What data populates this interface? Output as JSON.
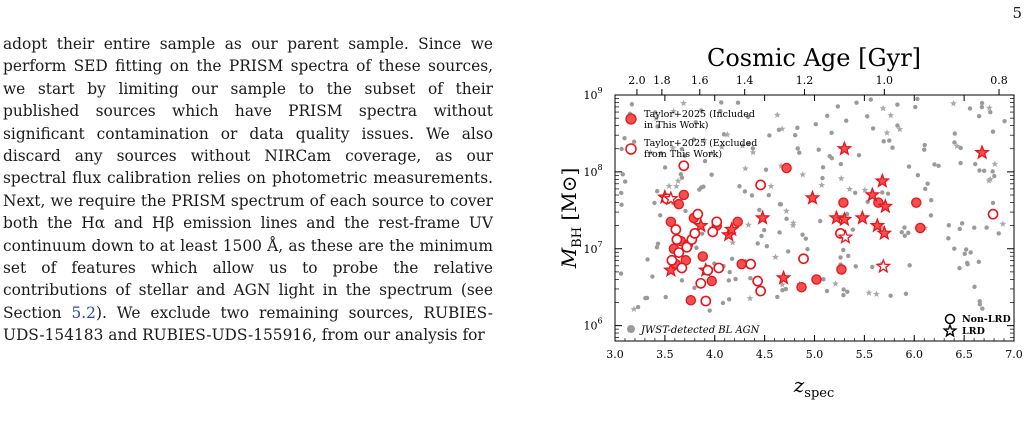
{
  "page_number": "5",
  "body_text": "adopt their entire sample as our parent sample. Since we perform SED fitting on the PRISM spectra of these sources, we start by limiting our sample to the subset of their published sources which have PRISM spectra without significant contamination or data quality issues. We also discard any sources without NIRCam coverage, as our spectral flux calibration relies on photometric measurements. Next, we require the PRISM spectrum of each source to cover both the Hα and Hβ emission lines and the rest-frame UV continuum down to at least 1500 Å, as these are the minimum set of features which allow us to probe the relative contributions of stellar and AGN light in the spectrum (see Section ",
  "section_ref": "5.2",
  "body_text_end": "). We exclude two remaining sources, RUBIES-UDS-154183 and RUBIES-UDS-155916, from our analysis for",
  "colors": {
    "red": "#e8141c",
    "red_fill": "#f05050",
    "grey_point": "#9a9a9a",
    "grey_star": "#a8a8a8",
    "link": "#2a49a8"
  },
  "chart_data": {
    "type": "scatter",
    "title": "Cosmic Age [Gyr]",
    "xlabel": "z_spec",
    "ylabel": "M_BH [M_⊙]",
    "xlim": [
      3.0,
      7.0
    ],
    "ylim_log10": [
      5.8,
      9.0
    ],
    "yscale": "log",
    "x_ticks": [
      "3.0",
      "3.5",
      "4.0",
      "4.5",
      "5.0",
      "5.5",
      "6.0",
      "6.5",
      "7.0"
    ],
    "y_ticks": [
      "10^6",
      "10^7",
      "10^8",
      "10^9"
    ],
    "top_axis": {
      "label": "Cosmic Age [Gyr]",
      "ticks": [
        {
          "label": "2.0",
          "z": 3.22
        },
        {
          "label": "1.8",
          "z": 3.47
        },
        {
          "label": "1.6",
          "z": 3.85
        },
        {
          "label": "1.4",
          "z": 4.3
        },
        {
          "label": "1.2",
          "z": 4.9
        },
        {
          "label": "1.0",
          "z": 5.7
        },
        {
          "label": "0.8",
          "z": 6.85
        }
      ]
    },
    "legend_upper": [
      {
        "label": "Taylor+2025 (Included in This Work)",
        "label_lines": [
          "Taylor+2025 (Included",
          "in This Work)"
        ],
        "marker": "filled red circle"
      },
      {
        "label": "Taylor+2025 (Excluded from This Work)",
        "label_lines": [
          "Taylor+2025 (Excluded",
          "from This Work)"
        ],
        "marker": "open red circle"
      }
    ],
    "legend_lower_left": {
      "label": "JWST-detected BL AGN",
      "marker": "grey circle"
    },
    "legend_lower_right": [
      {
        "label": "Non-LRD",
        "marker": "open black circle"
      },
      {
        "label": "LRD",
        "marker": "open black star"
      }
    ],
    "grid": false,
    "series": [
      {
        "name": "Taylor+2025 (Included in This Work)",
        "points": [
          {
            "z": 3.56,
            "log_mbh": 7.35,
            "lrd": false
          },
          {
            "z": 3.59,
            "log_mbh": 7.0,
            "lrd": false
          },
          {
            "z": 3.61,
            "log_mbh": 6.8,
            "lrd": false
          },
          {
            "z": 3.64,
            "log_mbh": 7.58,
            "lrd": false
          },
          {
            "z": 3.66,
            "log_mbh": 7.1,
            "lrd": false
          },
          {
            "z": 3.69,
            "log_mbh": 7.7,
            "lrd": false
          },
          {
            "z": 3.71,
            "log_mbh": 6.85,
            "lrd": false
          },
          {
            "z": 3.73,
            "log_mbh": 7.05,
            "lrd": false
          },
          {
            "z": 3.76,
            "log_mbh": 6.33,
            "lrd": false
          },
          {
            "z": 3.79,
            "log_mbh": 7.4,
            "lrd": false
          },
          {
            "z": 3.88,
            "log_mbh": 6.9,
            "lrd": false
          },
          {
            "z": 3.97,
            "log_mbh": 6.58,
            "lrd": false
          },
          {
            "z": 4.02,
            "log_mbh": 7.3,
            "lrd": false
          },
          {
            "z": 4.23,
            "log_mbh": 7.35,
            "lrd": false
          },
          {
            "z": 4.27,
            "log_mbh": 6.8,
            "lrd": false
          },
          {
            "z": 4.72,
            "log_mbh": 8.05,
            "lrd": false
          },
          {
            "z": 4.87,
            "log_mbh": 6.5,
            "lrd": false
          },
          {
            "z": 5.02,
            "log_mbh": 6.6,
            "lrd": false
          },
          {
            "z": 5.27,
            "log_mbh": 6.73,
            "lrd": false
          },
          {
            "z": 5.29,
            "log_mbh": 7.6,
            "lrd": false
          },
          {
            "z": 5.64,
            "log_mbh": 7.6,
            "lrd": false
          },
          {
            "z": 6.02,
            "log_mbh": 7.6,
            "lrd": false
          },
          {
            "z": 6.06,
            "log_mbh": 7.27,
            "lrd": false
          },
          {
            "z": 3.5,
            "log_mbh": 7.67,
            "lrd": true
          },
          {
            "z": 3.56,
            "log_mbh": 6.72,
            "lrd": true
          },
          {
            "z": 3.86,
            "log_mbh": 7.3,
            "lrd": true
          },
          {
            "z": 3.91,
            "log_mbh": 6.72,
            "lrd": true
          },
          {
            "z": 4.14,
            "log_mbh": 7.18,
            "lrd": true
          },
          {
            "z": 4.17,
            "log_mbh": 7.25,
            "lrd": true
          },
          {
            "z": 4.48,
            "log_mbh": 7.4,
            "lrd": true
          },
          {
            "z": 4.69,
            "log_mbh": 6.62,
            "lrd": true
          },
          {
            "z": 4.98,
            "log_mbh": 7.66,
            "lrd": true
          },
          {
            "z": 5.22,
            "log_mbh": 7.4,
            "lrd": true
          },
          {
            "z": 5.3,
            "log_mbh": 7.38,
            "lrd": true
          },
          {
            "z": 5.3,
            "log_mbh": 8.3,
            "lrd": true
          },
          {
            "z": 5.48,
            "log_mbh": 7.4,
            "lrd": true
          },
          {
            "z": 5.58,
            "log_mbh": 7.7,
            "lrd": true
          },
          {
            "z": 5.63,
            "log_mbh": 7.3,
            "lrd": true
          },
          {
            "z": 5.68,
            "log_mbh": 7.88,
            "lrd": true
          },
          {
            "z": 5.7,
            "log_mbh": 7.2,
            "lrd": true
          },
          {
            "z": 5.71,
            "log_mbh": 7.55,
            "lrd": true
          },
          {
            "z": 6.68,
            "log_mbh": 8.25,
            "lrd": true
          }
        ]
      },
      {
        "name": "Taylor+2025 (Excluded from This Work)",
        "points": [
          {
            "z": 3.52,
            "log_mbh": 7.65,
            "lrd": false
          },
          {
            "z": 3.57,
            "log_mbh": 6.85,
            "lrd": false
          },
          {
            "z": 3.61,
            "log_mbh": 7.25,
            "lrd": false
          },
          {
            "z": 3.62,
            "log_mbh": 7.12,
            "lrd": false
          },
          {
            "z": 3.64,
            "log_mbh": 6.95,
            "lrd": false
          },
          {
            "z": 3.67,
            "log_mbh": 6.75,
            "lrd": false
          },
          {
            "z": 3.69,
            "log_mbh": 8.08,
            "lrd": false
          },
          {
            "z": 3.72,
            "log_mbh": 7.02,
            "lrd": false
          },
          {
            "z": 3.77,
            "log_mbh": 7.12,
            "lrd": false
          },
          {
            "z": 3.8,
            "log_mbh": 7.2,
            "lrd": false
          },
          {
            "z": 3.83,
            "log_mbh": 7.45,
            "lrd": false
          },
          {
            "z": 3.86,
            "log_mbh": 6.55,
            "lrd": false
          },
          {
            "z": 3.91,
            "log_mbh": 6.32,
            "lrd": false
          },
          {
            "z": 3.93,
            "log_mbh": 6.72,
            "lrd": false
          },
          {
            "z": 3.98,
            "log_mbh": 7.22,
            "lrd": false
          },
          {
            "z": 4.02,
            "log_mbh": 7.35,
            "lrd": false
          },
          {
            "z": 4.04,
            "log_mbh": 6.75,
            "lrd": false
          },
          {
            "z": 4.36,
            "log_mbh": 6.8,
            "lrd": false
          },
          {
            "z": 4.43,
            "log_mbh": 6.58,
            "lrd": false
          },
          {
            "z": 4.46,
            "log_mbh": 7.83,
            "lrd": false
          },
          {
            "z": 4.46,
            "log_mbh": 6.45,
            "lrd": false
          },
          {
            "z": 4.89,
            "log_mbh": 6.87,
            "lrd": false
          },
          {
            "z": 5.26,
            "log_mbh": 7.2,
            "lrd": false
          },
          {
            "z": 6.79,
            "log_mbh": 7.45,
            "lrd": false
          },
          {
            "z": 3.56,
            "log_mbh": 7.65,
            "lrd": true
          },
          {
            "z": 5.31,
            "log_mbh": 7.15,
            "lrd": true
          },
          {
            "z": 5.69,
            "log_mbh": 6.77,
            "lrd": true
          }
        ]
      }
    ]
  }
}
